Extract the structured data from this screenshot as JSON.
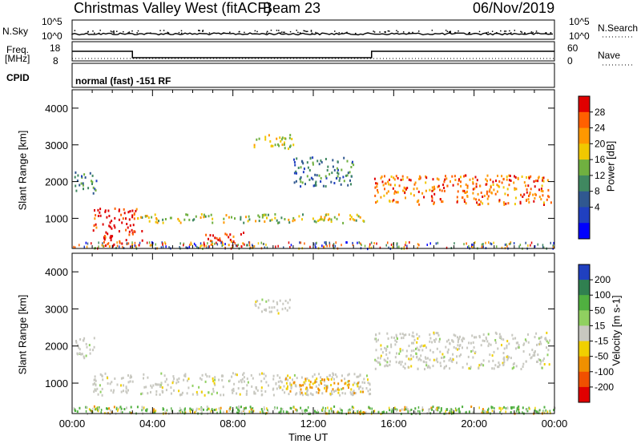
{
  "header": {
    "station": "Christmas Valley West (fitACF)",
    "beam": "Beam 23",
    "date": "06/Nov/2019"
  },
  "top_panels": {
    "nsky_label": "N.Sky",
    "nsky_ticks": [
      "10^5",
      "10^0"
    ],
    "nsearch_label": "N.Search",
    "nsearch_ticks": [
      "10^5",
      "10^0"
    ],
    "freq_label": "Freq.",
    "freq_unit": "[MHz]",
    "freq_ticks": [
      "18",
      "8"
    ],
    "nave_label": "Nave",
    "nave_ticks": [
      "60",
      "0"
    ],
    "cpid_label": "CPID",
    "cpid_value": "normal (fast) -151 RF"
  },
  "axes": {
    "xlabel": "Time UT",
    "xticks": [
      "00:00",
      "04:00",
      "08:00",
      "12:00",
      "16:00",
      "20:00",
      "00:00"
    ],
    "ylabel": "Slant Range [km]",
    "yticks": [
      "4000",
      "3000",
      "2000",
      "1000"
    ]
  },
  "colors": {
    "ground_gray": "#c8c8c0",
    "velocity_green": "#5cc83c",
    "velocity_orange": "#f0a020"
  },
  "chart_data": [
    {
      "type": "heatmap",
      "title": "Power",
      "colorbar_label": "Power [dB]",
      "colorbar_ticks": [
        "28",
        "24",
        "20",
        "16",
        "12",
        "8",
        "4"
      ],
      "colorbar_colors": [
        "#e00000",
        "#ff6000",
        "#ff9800",
        "#f0c800",
        "#70b040",
        "#408860",
        "#305890",
        "#2040c0",
        "#0000ff"
      ],
      "xlim": [
        0,
        24
      ],
      "ylim": [
        180,
        4500
      ],
      "regions": [
        {
          "t0": 0.1,
          "t1": 1.2,
          "r0": 1700,
          "r1": 2300,
          "level": 1
        },
        {
          "t0": 1.0,
          "t1": 3.2,
          "r0": 700,
          "r1": 1300,
          "level": 4
        },
        {
          "t0": 1.5,
          "t1": 3.5,
          "r0": 250,
          "r1": 700,
          "level": 4
        },
        {
          "t0": 3.2,
          "t1": 14.8,
          "r0": 900,
          "r1": 1150,
          "level": 2
        },
        {
          "t0": 6.5,
          "t1": 8.5,
          "r0": 250,
          "r1": 650,
          "level": 4
        },
        {
          "t0": 9.0,
          "t1": 11.0,
          "r0": 2900,
          "r1": 3300,
          "level": 2
        },
        {
          "t0": 11.0,
          "t1": 14.0,
          "r0": 1900,
          "r1": 2700,
          "level": 1
        },
        {
          "t0": 15.0,
          "t1": 23.8,
          "r0": 1400,
          "r1": 2200,
          "level": 3
        }
      ]
    },
    {
      "type": "heatmap",
      "title": "Velocity",
      "colorbar_label": "Velocity [m s-1]",
      "colorbar_ticks": [
        "200",
        "100",
        "50",
        "15",
        "-15",
        "-50",
        "-100",
        "-200"
      ],
      "colorbar_colors": [
        "#2040c0",
        "#308050",
        "#50b040",
        "#90d060",
        "#c8c8c0",
        "#f0d000",
        "#f09000",
        "#f05000",
        "#e00000"
      ],
      "xlim": [
        0,
        24
      ],
      "ylim": [
        180,
        4500
      ],
      "regions": [
        {
          "t0": 0.1,
          "t1": 1.2,
          "r0": 1700,
          "r1": 2300,
          "level": 0
        },
        {
          "t0": 1.0,
          "t1": 14.8,
          "r0": 700,
          "r1": 1300,
          "level": 0
        },
        {
          "t0": 10.5,
          "t1": 14.6,
          "r0": 750,
          "r1": 1150,
          "level": 1
        },
        {
          "t0": 0.0,
          "t1": 24.0,
          "r0": 200,
          "r1": 400,
          "level": 2
        },
        {
          "t0": 15.0,
          "t1": 23.8,
          "r0": 1400,
          "r1": 2400,
          "level": 0
        },
        {
          "t0": 9.0,
          "t1": 11.0,
          "r0": 2900,
          "r1": 3300,
          "level": 0
        }
      ]
    }
  ]
}
